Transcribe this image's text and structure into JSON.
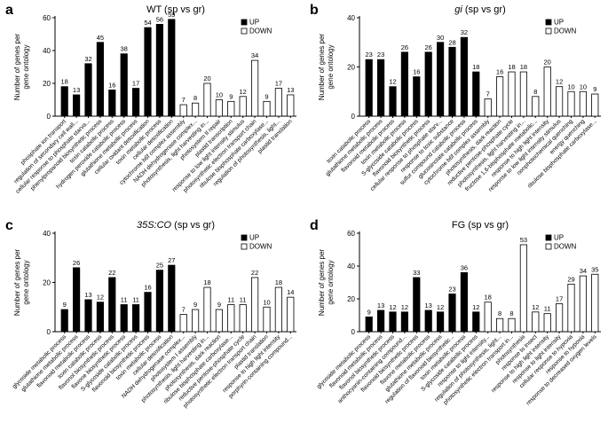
{
  "chart_data": [
    {
      "type": "bar",
      "panel_label": "a",
      "title": "WT (sp vs gr)",
      "ylabel": [
        "Number of genes per",
        "gene ontology"
      ],
      "categories": [
        "phosphate ion transport",
        "regulation of secondary cell wall...",
        "cellular response to phosphate starva...",
        "phenylpropanoid biosynthetic process",
        "toxin catabolic process",
        "hydrogen peroxide catabolic process",
        "glutathione metabolic process",
        "cellular oxidant detoxification",
        "toxin metabolic process",
        "cellular detoxification",
        "cytochrome b6f complex assembly",
        "NADH dehydrogenase complex...",
        "photosynthesis, light harvesting in...",
        "photosystem II repair",
        "plastid transcription",
        "response to low light intensity stimulus",
        "photosynthetic electron transport chain",
        "ribulose bisphosphate carboxylase...",
        "regulation of photosynthesis, light...",
        "plastid translation"
      ],
      "series": [
        {
          "name": "UP",
          "color": "#000000",
          "values": [
            18,
            13,
            32,
            45,
            16,
            38,
            17,
            54,
            56,
            59,
            null,
            null,
            null,
            null,
            null,
            null,
            null,
            null,
            null,
            null
          ]
        },
        {
          "name": "DOWN",
          "color": "#ffffff",
          "values": [
            null,
            null,
            null,
            null,
            null,
            null,
            null,
            null,
            null,
            null,
            7,
            8,
            20,
            10,
            9,
            12,
            34,
            9,
            17,
            13
          ]
        }
      ],
      "ylim": [
        0,
        60
      ],
      "yticks": [
        0,
        20,
        40,
        60
      ],
      "legend": "top-right"
    },
    {
      "type": "bar",
      "panel_label": "b",
      "title_italic": "gi",
      "title": "(sp vs gr)",
      "ylabel": [
        "Number of genes per",
        "gene ontology"
      ],
      "categories": [
        "toxin catabolic process",
        "glutathione metabolic process",
        "flavonoid metabolic process",
        "toxin metabolic process",
        "S-glycoside catabolic process",
        "flavonoid biosynthetic process",
        "cellular response to phosphate starv...",
        "response to toxic substance",
        "sulfur compound catabolic process",
        "glucosinolate catabolic process",
        "cytochrome b6f complex assembly",
        "photosynthesis, dark reaction",
        "reductive pentose-phosphate cycle",
        "photosynthesis, light harvesting in...",
        "fructose 1,6-bisphosphate metabolic...",
        "response to high light intensity",
        "response to low light intensity stimulus",
        "nonphotochemical quenching",
        "energy quenching",
        "ribulose bisphosphate carboxylase..."
      ],
      "series": [
        {
          "name": "UP",
          "color": "#000000",
          "values": [
            23,
            23,
            12,
            26,
            16,
            26,
            30,
            28,
            32,
            18,
            null,
            null,
            null,
            null,
            null,
            null,
            null,
            null,
            null,
            null
          ]
        },
        {
          "name": "DOWN",
          "color": "#ffffff",
          "values": [
            null,
            null,
            null,
            null,
            null,
            null,
            null,
            null,
            null,
            null,
            7,
            16,
            18,
            18,
            8,
            20,
            12,
            10,
            10,
            9
          ]
        }
      ],
      "ylim": [
        0,
        40
      ],
      "yticks": [
        0,
        20,
        40
      ],
      "legend": "top-right"
    },
    {
      "type": "bar",
      "panel_label": "c",
      "title_italic": "35S:CO",
      "title": "(sp vs gr)",
      "ylabel": [
        "Number of genes per",
        "gene ontology"
      ],
      "categories": [
        "glycoside metabolic process",
        "glutathione metabolic process",
        "flavonoid metabolic process",
        "toxin catabolic process",
        "flavonol biosynthetic process",
        "flavone biosynthetic process",
        "S-glycoside catabolic process",
        "flavonoid biosynthetic process",
        "toxin metabolic process",
        "cellular detoxification",
        "NADH dehydrogenase complex...",
        "photosystem I assembly",
        "photosynthesis, light harvesting in...",
        "photosynthesis, dark reaction",
        "ribulose bisphosphate carboxylase...",
        "reductive pentose-phosphate cycle",
        "photosynthetic electron transport chain",
        "plastid translation",
        "response to high light intensity",
        "porphyrin-containing compound..."
      ],
      "series": [
        {
          "name": "UP",
          "color": "#000000",
          "values": [
            9,
            26,
            13,
            12,
            22,
            11,
            11,
            16,
            25,
            27,
            null,
            null,
            null,
            null,
            null,
            null,
            null,
            null,
            null,
            null
          ]
        },
        {
          "name": "DOWN",
          "color": "#ffffff",
          "values": [
            null,
            null,
            null,
            null,
            null,
            null,
            null,
            null,
            null,
            null,
            7,
            9,
            18,
            9,
            11,
            11,
            22,
            10,
            18,
            14
          ]
        }
      ],
      "ylim": [
        0,
        40
      ],
      "yticks": [
        0,
        20,
        40
      ],
      "legend": "top-right"
    },
    {
      "type": "bar",
      "panel_label": "d",
      "title": "FG (sp vs gr)",
      "ylabel": [
        "Number of genes per",
        "gene ontology"
      ],
      "categories": [
        "glycoside metabolic process",
        "flavonoid metabolic process",
        "flavonol biosynthetic process",
        "anthocyanin-containing compound...",
        "flavonoid biosynthetic process",
        "flavone metabolic process",
        "glutathione metabolic process",
        "regulation of flavonoid biosynthetic...",
        "toxin metabolic process",
        "S-glycoside catabolic process",
        "response to light intensity...",
        "regulation of photosynthesis, light...",
        "photosynthetic electron transport in...",
        "photosynthesis",
        "response to insect",
        "response to high light intensity",
        "response to light intensity",
        "cellular response to hypoxia",
        "response to hypoxia",
        "response to decreased oxygen levels"
      ],
      "series": [
        {
          "name": "UP",
          "color": "#000000",
          "values": [
            9,
            13,
            12,
            12,
            33,
            13,
            12,
            23,
            36,
            12,
            null,
            null,
            null,
            null,
            null,
            null,
            null,
            null,
            null,
            null
          ]
        },
        {
          "name": "DOWN",
          "color": "#ffffff",
          "values": [
            null,
            null,
            null,
            null,
            null,
            null,
            null,
            null,
            null,
            null,
            18,
            8,
            8,
            53,
            12,
            11,
            17,
            29,
            34,
            35
          ]
        }
      ],
      "ylim": [
        0,
        60
      ],
      "yticks": [
        0,
        20,
        40,
        60
      ],
      "legend": "top-right"
    }
  ]
}
